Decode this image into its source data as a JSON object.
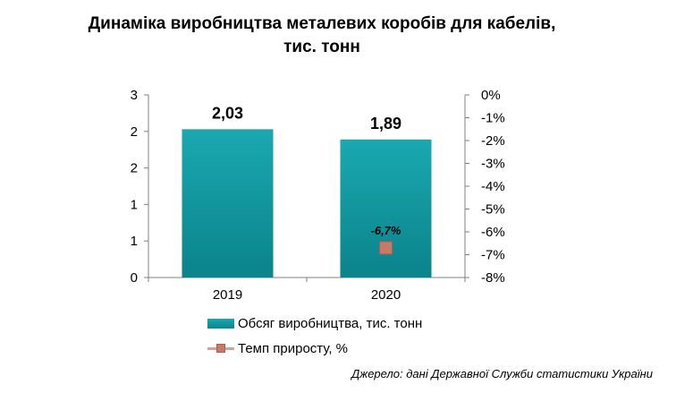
{
  "chart_data": {
    "type": "bar",
    "title_line1": "Динаміка виробництва металевих коробів для кабелів,",
    "title_line2": "тис. тонн",
    "categories": [
      "2019",
      "2020"
    ],
    "series": [
      {
        "name": "Обсяг виробництва, тис. тонн",
        "values": [
          2.03,
          1.89
        ],
        "value_labels": [
          "2,03",
          "1,89"
        ],
        "axis": "left",
        "color": "#15a0a8"
      },
      {
        "name": "Темп приросту, %",
        "values": [
          null,
          -6.7
        ],
        "value_labels": [
          "",
          "-6,7%"
        ],
        "axis": "right",
        "marker": "square",
        "color": "#c47b6a"
      }
    ],
    "y_left": {
      "range": [
        0,
        2.5
      ],
      "tick_labels": [
        "0",
        "1",
        "1",
        "2",
        "2",
        "3"
      ]
    },
    "y_right": {
      "range": [
        -8,
        0
      ],
      "tick_labels": [
        "0%",
        "-1%",
        "-2%",
        "-3%",
        "-4%",
        "-5%",
        "-6%",
        "-7%",
        "-8%"
      ]
    },
    "grid": false,
    "legend_position": "bottom"
  },
  "source_note": "Джерело: дані Державної Служби статистики України"
}
